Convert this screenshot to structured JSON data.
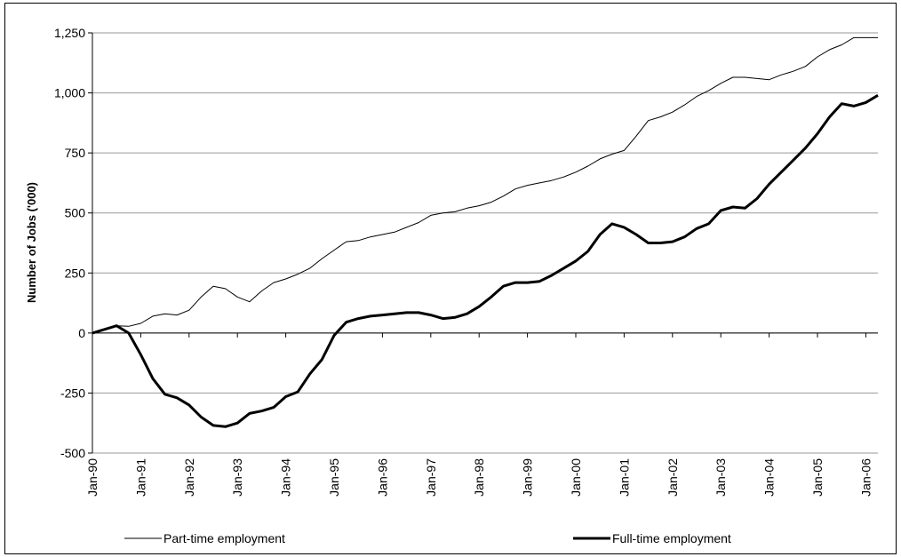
{
  "chart_data": {
    "type": "line",
    "y_label": "Number of Jobs ('000)",
    "categories": [
      "Jan-90",
      null,
      null,
      null,
      "Jan-91",
      null,
      null,
      null,
      "Jan-92",
      null,
      null,
      null,
      "Jan-93",
      null,
      null,
      null,
      "Jan-94",
      null,
      null,
      null,
      "Jan-95",
      null,
      null,
      null,
      "Jan-96",
      null,
      null,
      null,
      "Jan-97",
      null,
      null,
      null,
      "Jan-98",
      null,
      null,
      null,
      "Jan-99",
      null,
      null,
      null,
      "Jan-00",
      null,
      null,
      null,
      "Jan-01",
      null,
      null,
      null,
      "Jan-02",
      null,
      null,
      null,
      "Jan-03",
      null,
      null,
      null,
      "Jan-04",
      null,
      null,
      null,
      "Jan-05",
      null,
      null,
      null,
      "Jan-06",
      null
    ],
    "series": [
      {
        "name": "Part-time employment",
        "color": "#000000",
        "width": 1,
        "values": [
          0,
          15,
          30,
          28,
          40,
          70,
          80,
          75,
          95,
          150,
          195,
          185,
          150,
          130,
          175,
          210,
          225,
          245,
          270,
          310,
          345,
          380,
          385,
          400,
          410,
          420,
          440,
          460,
          490,
          500,
          505,
          520,
          530,
          545,
          570,
          600,
          615,
          625,
          635,
          650,
          670,
          695,
          725,
          745,
          760,
          820,
          885,
          900,
          920,
          950,
          985,
          1010,
          1040,
          1065,
          1065,
          1060,
          1055,
          1075,
          1090,
          1110,
          1150,
          1180,
          1200,
          1230,
          1230,
          1230
        ]
      },
      {
        "name": "Full-time employment",
        "color": "#000000",
        "width": 3,
        "values": [
          0,
          15,
          30,
          0,
          -90,
          -190,
          -255,
          -270,
          -300,
          -350,
          -385,
          -390,
          -375,
          -335,
          -325,
          -310,
          -265,
          -245,
          -170,
          -110,
          -10,
          45,
          60,
          70,
          75,
          80,
          85,
          85,
          75,
          60,
          65,
          80,
          110,
          150,
          195,
          210,
          210,
          215,
          240,
          270,
          300,
          340,
          410,
          455,
          440,
          410,
          375,
          375,
          380,
          400,
          435,
          455,
          510,
          525,
          520,
          560,
          620,
          670,
          720,
          770,
          830,
          900,
          955,
          945,
          960,
          990
        ]
      }
    ],
    "ylim": [
      -500,
      1250
    ],
    "yticks": [
      -500,
      -250,
      0,
      250,
      500,
      750,
      {
        "value": 1000,
        "label": "1,000"
      },
      {
        "value": 1250,
        "label": "1,250"
      }
    ],
    "grid": true,
    "legend": "bottom"
  }
}
